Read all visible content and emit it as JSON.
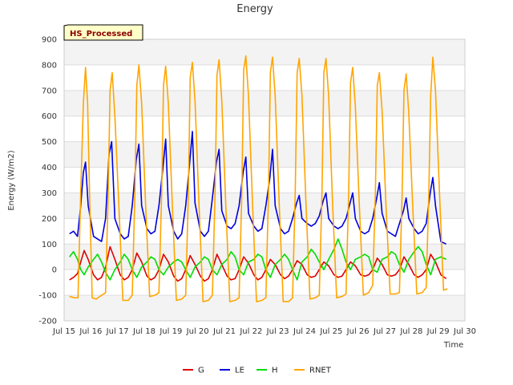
{
  "chart_data": {
    "type": "line",
    "title": "Energy",
    "xlabel": "Time",
    "ylabel": "Energy (W/m2)",
    "badge": "HS_Processed",
    "xlim": [
      15,
      30
    ],
    "ylim": [
      -200,
      900
    ],
    "yticks": [
      -200,
      -100,
      0,
      100,
      200,
      300,
      400,
      500,
      600,
      700,
      800,
      900
    ],
    "xticks": [
      {
        "value": 15,
        "label": "Jul 15"
      },
      {
        "value": 16,
        "label": "Jul 16"
      },
      {
        "value": 17,
        "label": "Jul 17"
      },
      {
        "value": 18,
        "label": "Jul 18"
      },
      {
        "value": 19,
        "label": "Jul 19"
      },
      {
        "value": 20,
        "label": "Jul 20"
      },
      {
        "value": 21,
        "label": "Jul 21"
      },
      {
        "value": 22,
        "label": "Jul 22"
      },
      {
        "value": 23,
        "label": "Jul 23"
      },
      {
        "value": 24,
        "label": "Jul 24"
      },
      {
        "value": 25,
        "label": "Jul 25"
      },
      {
        "value": 26,
        "label": "Jul 26"
      },
      {
        "value": 27,
        "label": "Jul 27"
      },
      {
        "value": 28,
        "label": "Jul 28"
      },
      {
        "value": 29,
        "label": "Jul 29"
      },
      {
        "value": 30,
        "label": "Jul 30"
      }
    ],
    "grid": true,
    "legend_position": "bottom",
    "series": [
      {
        "name": "G",
        "color": "#dd0000",
        "x": [
          15.2,
          15.35,
          15.5,
          15.62,
          15.75,
          15.9,
          16.1,
          16.25,
          16.4,
          16.55,
          16.72,
          16.9,
          17.1,
          17.25,
          17.4,
          17.55,
          17.72,
          17.9,
          18.1,
          18.25,
          18.4,
          18.55,
          18.72,
          18.9,
          19.1,
          19.25,
          19.4,
          19.55,
          19.72,
          19.9,
          20.1,
          20.25,
          20.4,
          20.55,
          20.72,
          20.9,
          21.1,
          21.25,
          21.4,
          21.55,
          21.72,
          21.9,
          22.1,
          22.25,
          22.4,
          22.55,
          22.72,
          22.9,
          23.1,
          23.25,
          23.4,
          23.55,
          23.72,
          23.9,
          24.1,
          24.25,
          24.4,
          24.55,
          24.72,
          24.9,
          25.1,
          25.25,
          25.4,
          25.55,
          25.72,
          25.9,
          26.1,
          26.25,
          26.4,
          26.55,
          26.72,
          26.9,
          27.1,
          27.25,
          27.4,
          27.55,
          27.72,
          27.9,
          28.1,
          28.25,
          28.4,
          28.55,
          28.72,
          28.9,
          29.1,
          29.3
        ],
        "y": [
          -40,
          -30,
          -15,
          30,
          75,
          40,
          -20,
          -40,
          -30,
          10,
          90,
          40,
          -20,
          -40,
          -30,
          0,
          65,
          30,
          -25,
          -40,
          -30,
          0,
          60,
          30,
          -25,
          -45,
          -35,
          0,
          55,
          20,
          -25,
          -45,
          -35,
          0,
          60,
          20,
          -25,
          -40,
          -35,
          0,
          50,
          25,
          -20,
          -40,
          -30,
          0,
          40,
          20,
          -20,
          -35,
          -25,
          0,
          35,
          20,
          -20,
          -30,
          -25,
          0,
          30,
          15,
          -20,
          -30,
          -25,
          0,
          30,
          15,
          -20,
          -25,
          -20,
          0,
          45,
          20,
          -20,
          -25,
          -20,
          0,
          50,
          20,
          -20,
          -30,
          -20,
          0,
          60,
          30,
          -20,
          -35
        ]
      },
      {
        "name": "LE",
        "color": "#0000dd",
        "x": [
          15.2,
          15.35,
          15.5,
          15.62,
          15.72,
          15.8,
          15.9,
          16.1,
          16.25,
          16.4,
          16.55,
          16.68,
          16.78,
          16.9,
          17.1,
          17.25,
          17.4,
          17.55,
          17.7,
          17.8,
          17.9,
          18.1,
          18.25,
          18.4,
          18.55,
          18.7,
          18.8,
          18.9,
          19.1,
          19.25,
          19.4,
          19.55,
          19.7,
          19.8,
          19.9,
          20.1,
          20.25,
          20.4,
          20.55,
          20.7,
          20.8,
          20.9,
          21.1,
          21.25,
          21.4,
          21.55,
          21.7,
          21.8,
          21.9,
          22.1,
          22.25,
          22.4,
          22.55,
          22.7,
          22.8,
          22.9,
          23.1,
          23.25,
          23.4,
          23.55,
          23.7,
          23.8,
          23.9,
          24.1,
          24.25,
          24.4,
          24.55,
          24.7,
          24.8,
          24.9,
          25.1,
          25.25,
          25.4,
          25.55,
          25.7,
          25.8,
          25.9,
          26.1,
          26.25,
          26.4,
          26.55,
          26.7,
          26.8,
          26.9,
          27.1,
          27.25,
          27.4,
          27.55,
          27.7,
          27.8,
          27.9,
          28.1,
          28.25,
          28.4,
          28.55,
          28.7,
          28.8,
          28.9,
          29.1,
          29.3
        ],
        "y": [
          140,
          150,
          130,
          250,
          380,
          420,
          250,
          130,
          120,
          110,
          200,
          450,
          500,
          200,
          140,
          120,
          130,
          250,
          430,
          490,
          250,
          160,
          140,
          150,
          250,
          400,
          510,
          250,
          150,
          120,
          140,
          250,
          420,
          540,
          260,
          150,
          130,
          150,
          280,
          420,
          470,
          230,
          170,
          160,
          180,
          250,
          380,
          440,
          220,
          170,
          150,
          160,
          250,
          360,
          470,
          250,
          160,
          140,
          150,
          200,
          260,
          290,
          200,
          180,
          170,
          180,
          210,
          270,
          300,
          200,
          170,
          160,
          170,
          200,
          260,
          300,
          200,
          150,
          140,
          150,
          200,
          280,
          340,
          220,
          150,
          140,
          130,
          180,
          230,
          280,
          200,
          160,
          140,
          150,
          180,
          300,
          360,
          250,
          110,
          100
        ]
      },
      {
        "name": "H",
        "color": "#00dd00",
        "x": [
          15.2,
          15.35,
          15.5,
          15.62,
          15.75,
          15.9,
          16.1,
          16.25,
          16.4,
          16.55,
          16.72,
          16.9,
          17.1,
          17.25,
          17.4,
          17.55,
          17.72,
          17.9,
          18.1,
          18.25,
          18.4,
          18.55,
          18.72,
          18.9,
          19.1,
          19.25,
          19.4,
          19.55,
          19.72,
          19.9,
          20.1,
          20.25,
          20.4,
          20.55,
          20.72,
          20.9,
          21.1,
          21.25,
          21.4,
          21.55,
          21.72,
          21.9,
          22.1,
          22.25,
          22.4,
          22.55,
          22.72,
          22.9,
          23.1,
          23.25,
          23.4,
          23.55,
          23.72,
          23.9,
          24.1,
          24.25,
          24.4,
          24.55,
          24.72,
          24.9,
          25.1,
          25.25,
          25.4,
          25.55,
          25.72,
          25.9,
          26.1,
          26.25,
          26.4,
          26.55,
          26.72,
          26.9,
          27.1,
          27.25,
          27.4,
          27.55,
          27.72,
          27.9,
          28.1,
          28.25,
          28.4,
          28.55,
          28.72,
          28.9,
          29.1,
          29.3
        ],
        "y": [
          50,
          70,
          40,
          0,
          -20,
          10,
          40,
          60,
          30,
          -10,
          -40,
          0,
          30,
          60,
          40,
          0,
          -30,
          10,
          30,
          50,
          40,
          0,
          -20,
          10,
          30,
          40,
          30,
          0,
          -30,
          10,
          30,
          50,
          40,
          0,
          -20,
          20,
          40,
          70,
          50,
          0,
          -20,
          30,
          40,
          60,
          50,
          0,
          -30,
          20,
          40,
          60,
          40,
          0,
          -40,
          30,
          50,
          80,
          60,
          30,
          0,
          40,
          80,
          120,
          80,
          30,
          0,
          40,
          50,
          60,
          50,
          0,
          -10,
          40,
          50,
          70,
          60,
          20,
          -10,
          40,
          70,
          90,
          70,
          20,
          -20,
          40,
          50,
          40
        ]
      },
      {
        "name": "RNET",
        "color": "#ffa500",
        "x": [
          15.2,
          15.4,
          15.52,
          15.62,
          15.72,
          15.8,
          15.88,
          15.95,
          16.05,
          16.2,
          16.4,
          16.55,
          16.65,
          16.72,
          16.8,
          16.9,
          17.05,
          17.2,
          17.4,
          17.55,
          17.65,
          17.72,
          17.8,
          17.9,
          18.05,
          18.2,
          18.4,
          18.55,
          18.65,
          18.72,
          18.8,
          18.9,
          19.05,
          19.2,
          19.4,
          19.55,
          19.65,
          19.72,
          19.8,
          19.9,
          20.05,
          20.2,
          20.4,
          20.55,
          20.65,
          20.72,
          20.8,
          20.9,
          21.05,
          21.2,
          21.4,
          21.55,
          21.65,
          21.72,
          21.8,
          21.9,
          22.05,
          22.2,
          22.4,
          22.55,
          22.65,
          22.72,
          22.8,
          22.9,
          23.05,
          23.2,
          23.4,
          23.55,
          23.65,
          23.72,
          23.8,
          23.9,
          24.05,
          24.2,
          24.4,
          24.55,
          24.65,
          24.72,
          24.8,
          24.9,
          25.05,
          25.2,
          25.4,
          25.55,
          25.65,
          25.72,
          25.8,
          25.9,
          26.05,
          26.2,
          26.4,
          26.55,
          26.65,
          26.72,
          26.8,
          26.9,
          27.05,
          27.2,
          27.4,
          27.55,
          27.65,
          27.72,
          27.8,
          27.9,
          28.05,
          28.2,
          28.4,
          28.55,
          28.65,
          28.72,
          28.8,
          28.9,
          29.05,
          29.2,
          29.35
        ],
        "y": [
          -105,
          -110,
          -110,
          300,
          650,
          790,
          650,
          300,
          -110,
          -115,
          -100,
          -90,
          300,
          700,
          770,
          600,
          250,
          -120,
          -120,
          -100,
          300,
          720,
          800,
          650,
          250,
          -105,
          -100,
          -90,
          300,
          720,
          795,
          650,
          250,
          -120,
          -115,
          -100,
          300,
          750,
          810,
          660,
          250,
          -125,
          -120,
          -100,
          300,
          760,
          820,
          660,
          250,
          -125,
          -120,
          -110,
          300,
          780,
          835,
          680,
          260,
          -125,
          -120,
          -110,
          300,
          770,
          830,
          680,
          260,
          -125,
          -125,
          -110,
          300,
          770,
          825,
          680,
          260,
          -115,
          -110,
          -100,
          300,
          770,
          825,
          680,
          250,
          -110,
          -105,
          -95,
          300,
          730,
          790,
          640,
          250,
          -100,
          -90,
          -60,
          300,
          720,
          770,
          620,
          240,
          -95,
          -95,
          -90,
          300,
          700,
          765,
          610,
          240,
          -95,
          -90,
          -70,
          300,
          680,
          830,
          700,
          300,
          -80,
          -75
        ]
      }
    ]
  }
}
